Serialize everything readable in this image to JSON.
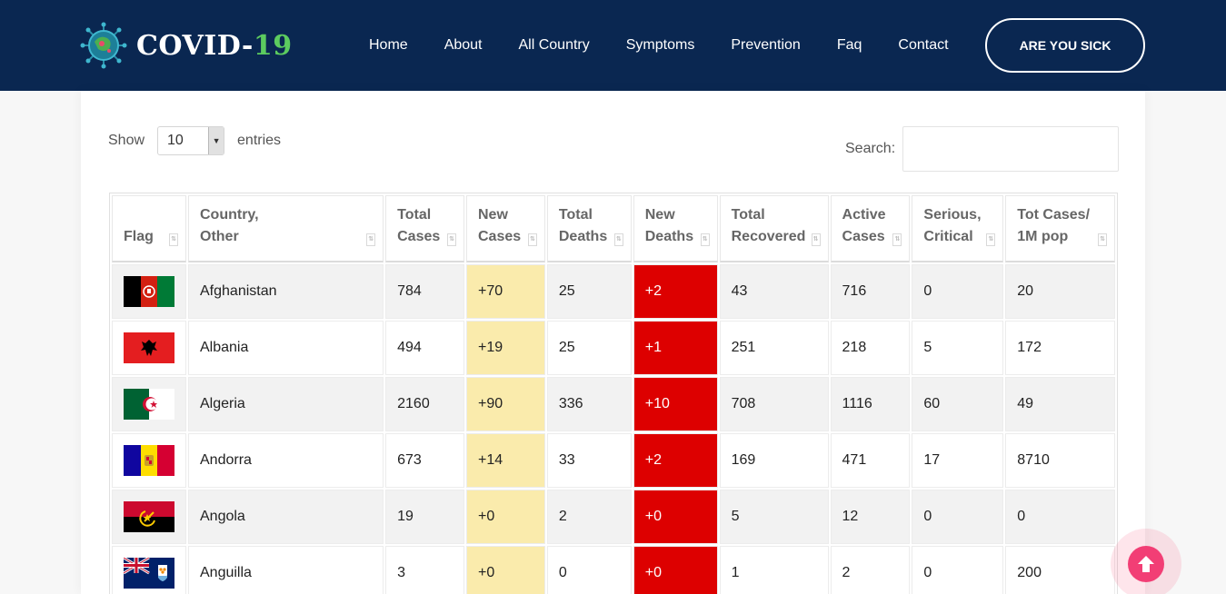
{
  "brand": {
    "name": "COVID-",
    "number": "19"
  },
  "nav": [
    "Home",
    "About",
    "All Country",
    "Symptoms",
    "Prevention",
    "Faq",
    "Contact"
  ],
  "cta": "ARE YOU SICK",
  "length": {
    "show": "Show",
    "value": "10",
    "entries": "entries"
  },
  "search": {
    "label": "Search:",
    "value": ""
  },
  "columns": [
    [
      "Flag"
    ],
    [
      "Country,",
      "Other"
    ],
    [
      "Total",
      "Cases"
    ],
    [
      "New",
      "Cases"
    ],
    [
      "Total",
      "Deaths"
    ],
    [
      "New",
      "Deaths"
    ],
    [
      "Total",
      "Recovered"
    ],
    [
      "Active",
      "Cases"
    ],
    [
      "Serious,",
      "Critical"
    ],
    [
      "Tot Cases/",
      "1M pop"
    ]
  ],
  "rows": [
    {
      "flag": "afghanistan-flag",
      "country": "Afghanistan",
      "total_cases": "784",
      "new_cases": "+70",
      "total_deaths": "25",
      "new_deaths": "+2",
      "total_recovered": "43",
      "active_cases": "716",
      "serious": "0",
      "per_million": "20"
    },
    {
      "flag": "albania-flag",
      "country": "Albania",
      "total_cases": "494",
      "new_cases": "+19",
      "total_deaths": "25",
      "new_deaths": "+1",
      "total_recovered": "251",
      "active_cases": "218",
      "serious": "5",
      "per_million": "172"
    },
    {
      "flag": "algeria-flag",
      "country": "Algeria",
      "total_cases": "2160",
      "new_cases": "+90",
      "total_deaths": "336",
      "new_deaths": "+10",
      "total_recovered": "708",
      "active_cases": "1116",
      "serious": "60",
      "per_million": "49"
    },
    {
      "flag": "andorra-flag",
      "country": "Andorra",
      "total_cases": "673",
      "new_cases": "+14",
      "total_deaths": "33",
      "new_deaths": "+2",
      "total_recovered": "169",
      "active_cases": "471",
      "serious": "17",
      "per_million": "8710"
    },
    {
      "flag": "angola-flag",
      "country": "Angola",
      "total_cases": "19",
      "new_cases": "+0",
      "total_deaths": "2",
      "new_deaths": "+0",
      "total_recovered": "5",
      "active_cases": "12",
      "serious": "0",
      "per_million": "0"
    },
    {
      "flag": "anguilla-flag",
      "country": "Anguilla",
      "total_cases": "3",
      "new_cases": "+0",
      "total_deaths": "0",
      "new_deaths": "+0",
      "total_recovered": "1",
      "active_cases": "2",
      "serious": "0",
      "per_million": "200"
    }
  ],
  "colors": {
    "header_bg": "#0a2751",
    "accent_green": "#5ccb5f",
    "new_cases_bg": "#faebac",
    "new_deaths_bg": "#dd0000",
    "scroll_btn": "#f23e75"
  },
  "icons": {
    "logo": "virus-icon",
    "sort": "sort-icon",
    "dropdown": "chevron-down-icon",
    "scroll_top": "arrow-up-circle-icon"
  }
}
